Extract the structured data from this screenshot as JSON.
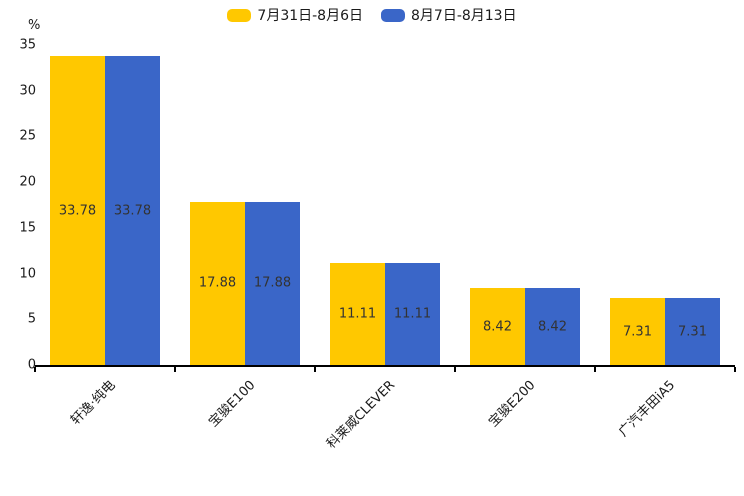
{
  "legend": {
    "items": [
      {
        "label": "7月31日-8月6日",
        "color": "#FFC800"
      },
      {
        "label": "8月7日-8月13日",
        "color": "#3A66C8"
      }
    ]
  },
  "chart_data": {
    "type": "bar",
    "title": "",
    "xlabel": "",
    "ylabel": "%",
    "categories": [
      "轩逸·纯电",
      "宝骏E100",
      "科莱威CLEVER",
      "宝骏E200",
      "广汽丰田iA5"
    ],
    "series": [
      {
        "name": "7月31日-8月6日",
        "color": "#FFC800",
        "values": [
          33.78,
          17.88,
          11.11,
          8.42,
          7.31
        ]
      },
      {
        "name": "8月7日-8月13日",
        "color": "#3A66C8",
        "values": [
          33.78,
          17.88,
          11.11,
          8.42,
          7.31
        ]
      }
    ],
    "value_labels": [
      "33.78",
      "17.88",
      "11.11",
      "8.42",
      "7.31"
    ],
    "ylim": [
      0,
      35
    ],
    "yticks": [
      0,
      5,
      10,
      15,
      20,
      25,
      30,
      35
    ],
    "grid": false,
    "legend_position": "top-center",
    "value_label_color": "#333333",
    "axis_color": "#000000",
    "xtick_rotation_deg": 45
  }
}
